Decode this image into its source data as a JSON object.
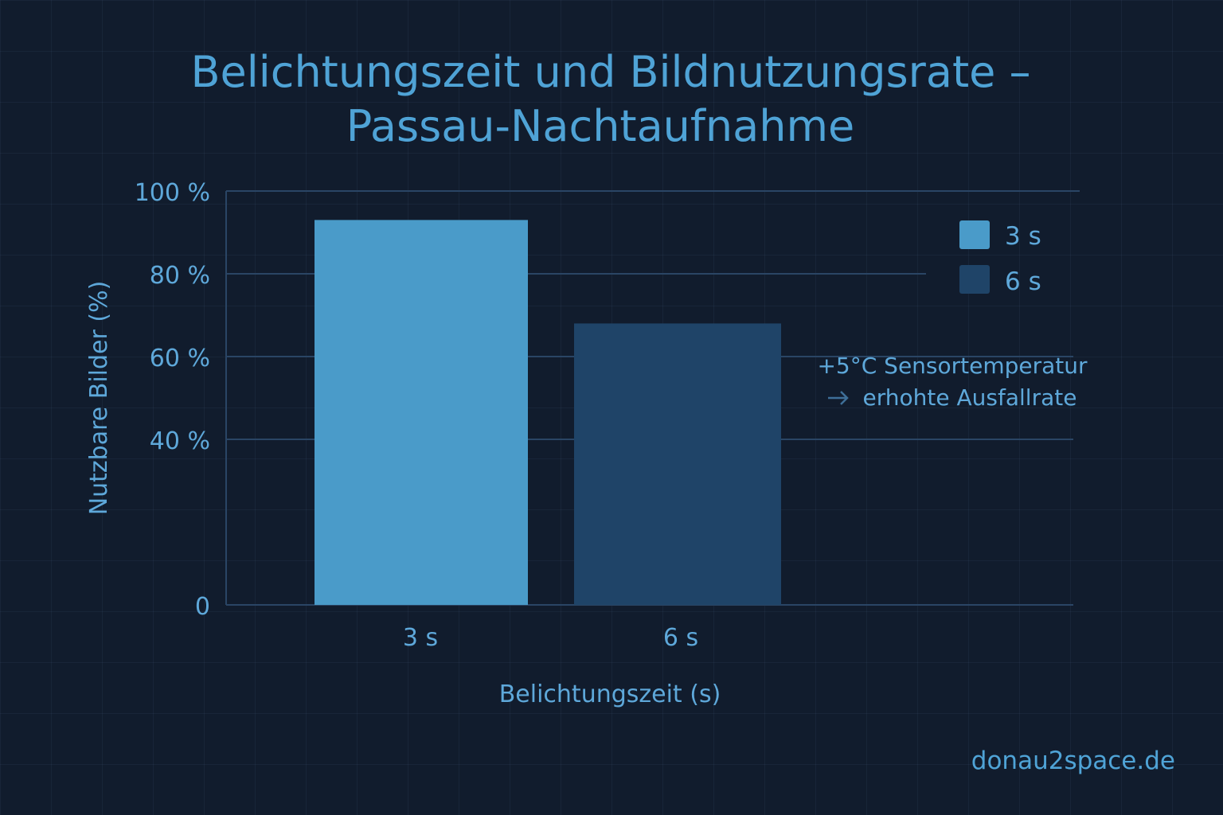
{
  "title": {
    "line1": "Belichtungszeit und Bildnutzungsrate –",
    "line2": "Passau-Nachtaufnahme"
  },
  "watermark": "donau2space.de",
  "colors": {
    "background": "#111c2d",
    "bar_3s": "#4a9bc9",
    "bar_6s": "#1f4468",
    "text": "#5ea8da",
    "gridline": "#2a4565"
  },
  "chart_data": {
    "type": "bar",
    "title": "Belichtungszeit und Bildnutzungsrate – Passau-Nachtaufnahme",
    "categories": [
      "3 s",
      "6 s"
    ],
    "values": [
      93,
      68
    ],
    "xlabel": "Belichtungszeit (s)",
    "ylabel": "Nutzbare Bilder (%)",
    "ylim": [
      0,
      100
    ],
    "yticks": [
      {
        "value": 0,
        "label": "0"
      },
      {
        "value": 40,
        "label": "40 %"
      },
      {
        "value": 60,
        "label": "60 %"
      },
      {
        "value": 80,
        "label": "80 %"
      },
      {
        "value": 100,
        "label": "100 %"
      }
    ],
    "grid": true,
    "legend": {
      "placement": "top-right",
      "entries": [
        {
          "label": "3 s",
          "color": "#4a9bc9"
        },
        {
          "label": "6 s",
          "color": "#1f4468"
        }
      ]
    },
    "annotation": {
      "line1": "+5°C Sensortemperatur",
      "line2": "erhohte Ausfallrate",
      "target": "6 s"
    }
  }
}
